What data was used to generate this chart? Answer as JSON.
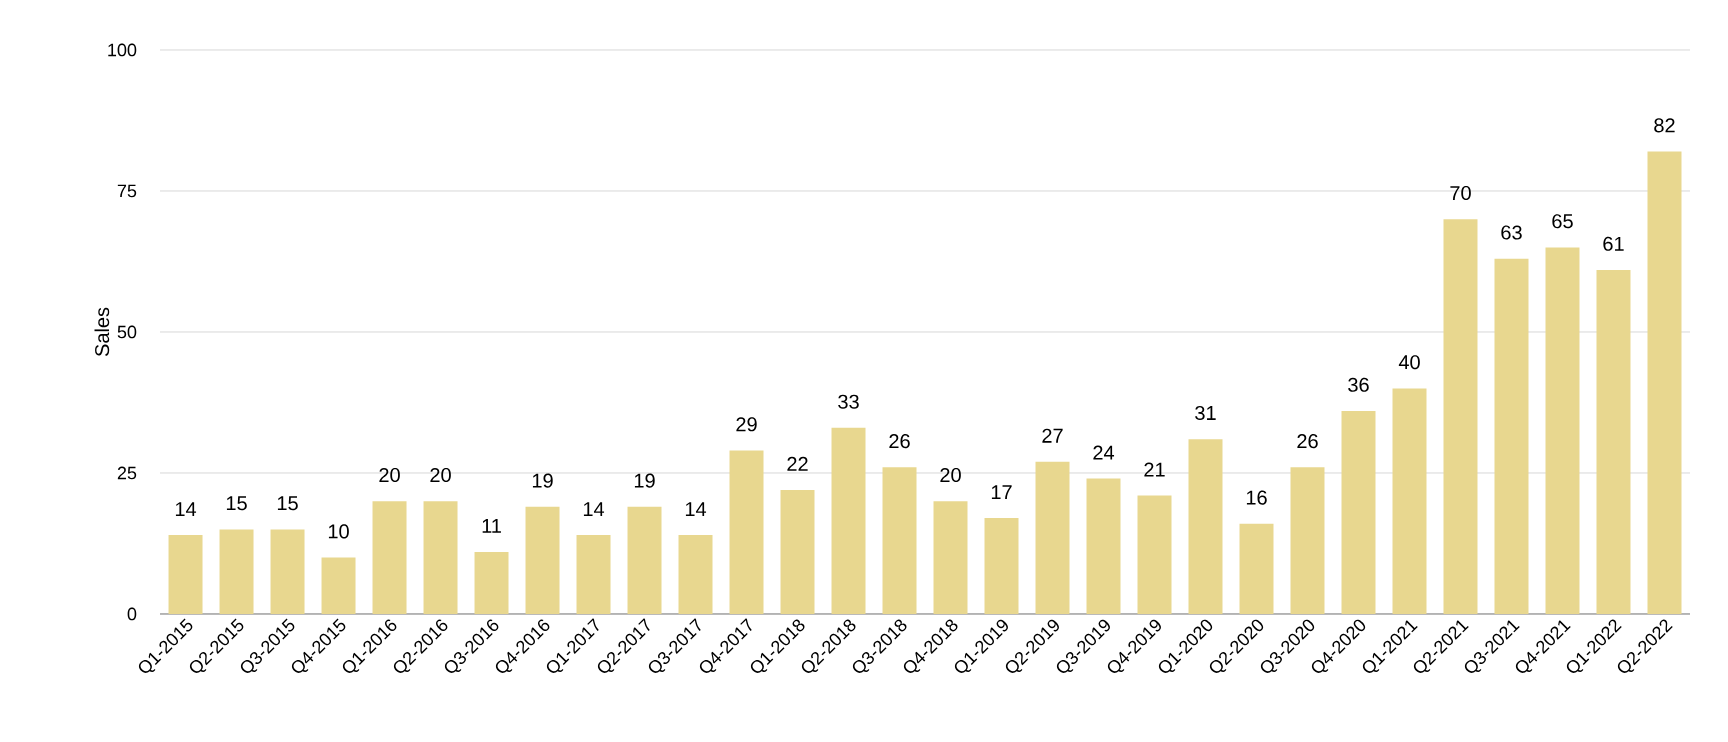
{
  "chart_data": {
    "type": "bar",
    "ylabel": "Sales",
    "categories": [
      "Q1-2015",
      "Q2-2015",
      "Q3-2015",
      "Q4-2015",
      "Q1-2016",
      "Q2-2016",
      "Q3-2016",
      "Q4-2016",
      "Q1-2017",
      "Q2-2017",
      "Q3-2017",
      "Q4-2017",
      "Q1-2018",
      "Q2-2018",
      "Q3-2018",
      "Q4-2018",
      "Q1-2019",
      "Q2-2019",
      "Q3-2019",
      "Q4-2019",
      "Q1-2020",
      "Q2-2020",
      "Q3-2020",
      "Q4-2020",
      "Q1-2021",
      "Q2-2021",
      "Q3-2021",
      "Q4-2021",
      "Q1-2022",
      "Q2-2022"
    ],
    "values": [
      14,
      15,
      15,
      10,
      20,
      20,
      11,
      19,
      14,
      19,
      14,
      29,
      22,
      33,
      26,
      20,
      17,
      27,
      24,
      21,
      31,
      16,
      26,
      36,
      40,
      70,
      63,
      65,
      61,
      82
    ],
    "color": "#e8d78f",
    "ylim": [
      0,
      100
    ],
    "yticks": [
      0,
      25,
      50,
      75,
      100
    ],
    "grid": "y",
    "data_labels": true
  }
}
